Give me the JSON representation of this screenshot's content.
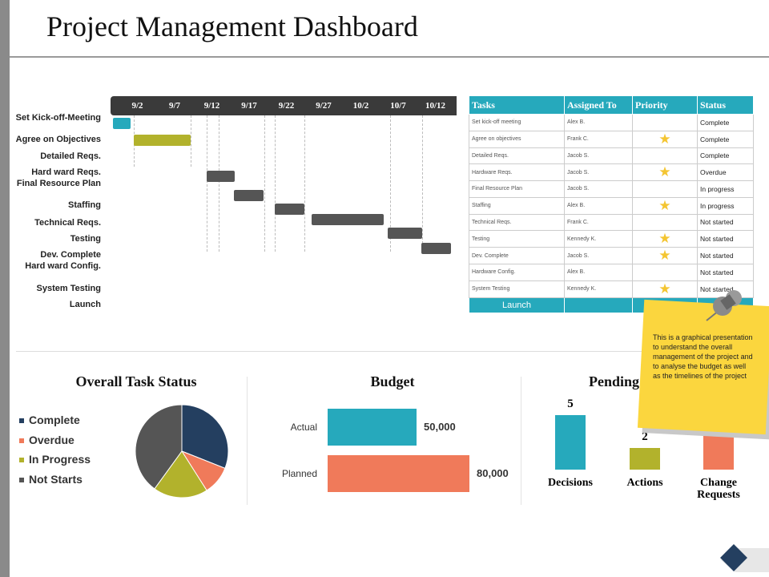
{
  "title": "Project Management Dashboard",
  "timeline": [
    "9/2",
    "9/7",
    "9/12",
    "9/17",
    "9/22",
    "9/27",
    "10/2",
    "10/7",
    "10/12"
  ],
  "gantt_labels": [
    "Set Kick-off-Meeting",
    "Agree on Objectives",
    "Detailed Reqs.",
    "Hard ward Reqs.",
    "Final Resource Plan",
    "Staffing",
    "Technical Reqs.",
    "Testing",
    "Dev. Complete",
    "Hard ward Config.",
    "System Testing",
    "Launch"
  ],
  "table": {
    "headers": [
      "Tasks",
      "Assigned To",
      "Priority",
      "Status"
    ],
    "rows": [
      {
        "task": "Set kick-off meeting",
        "assigned": "Alex B.",
        "priority": false,
        "status": "Complete"
      },
      {
        "task": "Agree on objectives",
        "assigned": "Frank C.",
        "priority": true,
        "status": "Complete"
      },
      {
        "task": "Detailed Reqs.",
        "assigned": "Jacob S.",
        "priority": false,
        "status": "Complete"
      },
      {
        "task": "Hardware Reqs.",
        "assigned": "Jacob S.",
        "priority": true,
        "status": "Overdue"
      },
      {
        "task": "Final Resource Plan",
        "assigned": "Jacob S.",
        "priority": false,
        "status": "In progress"
      },
      {
        "task": "Staffing",
        "assigned": "Alex B.",
        "priority": true,
        "status": "In progress"
      },
      {
        "task": "Technical Reqs.",
        "assigned": "Frank C.",
        "priority": false,
        "status": "Not started"
      },
      {
        "task": "Testing",
        "assigned": "Kennedy K.",
        "priority": true,
        "status": "Not started"
      },
      {
        "task": "Dev. Complete",
        "assigned": "Jacob S.",
        "priority": true,
        "status": "Not started"
      },
      {
        "task": "Hardware Config.",
        "assigned": "Alex B.",
        "priority": false,
        "status": "Not started"
      },
      {
        "task": "System Testing",
        "assigned": "Kennedy K.",
        "priority": true,
        "status": "Not started"
      }
    ],
    "launch": "Launch"
  },
  "task_status": {
    "title": "Overall Task Status",
    "legend": [
      "Complete",
      "Overdue",
      "In Progress",
      "Not Starts"
    ],
    "values_pct": [
      31,
      10,
      19,
      40
    ],
    "colors": [
      "#243f60",
      "#f07a5a",
      "#b2b22c",
      "#555555"
    ]
  },
  "budget": {
    "title": "Budget",
    "labels": [
      "Actual",
      "Planned"
    ],
    "values": [
      "50,000",
      "80,000"
    ],
    "colors": [
      "#26a9bc",
      "#f07a5a"
    ]
  },
  "pending": {
    "title": "Pending",
    "labels": [
      "Decisions",
      "Actions",
      "Change Requests"
    ],
    "values": [
      "5",
      "2",
      ""
    ],
    "heights": [
      5,
      2,
      6
    ],
    "colors": [
      "#26a9bc",
      "#b2b22c",
      "#f07a5a"
    ]
  },
  "note": "This is a graphical presentation to understand the overall management of the project and to analyse the budget as well as the timelines of the project"
}
